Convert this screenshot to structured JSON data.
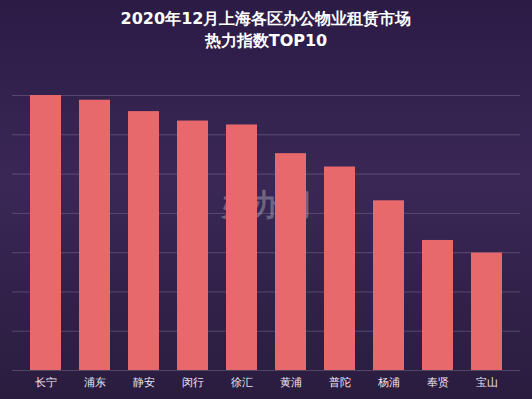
{
  "chart_data": {
    "type": "bar",
    "title": "2020年12月上海各区办公物业租赁市场",
    "subtitle": "热力指数TOP10",
    "categories": [
      "长宁",
      "浦东",
      "静安",
      "闵行",
      "徐汇",
      "黄浦",
      "普陀",
      "杨浦",
      "奉贤",
      "宝山"
    ],
    "values": [
      7.0,
      6.88,
      6.59,
      6.35,
      6.25,
      5.52,
      5.18,
      4.32,
      3.31,
      2.99
    ],
    "color": "#e8696b",
    "ylim": [
      0,
      7
    ],
    "yticks": [
      0,
      1,
      2,
      3,
      4,
      5,
      6,
      7
    ],
    "grid": true,
    "tick_labels": "x",
    "annotations": [
      "办办网"
    ]
  }
}
